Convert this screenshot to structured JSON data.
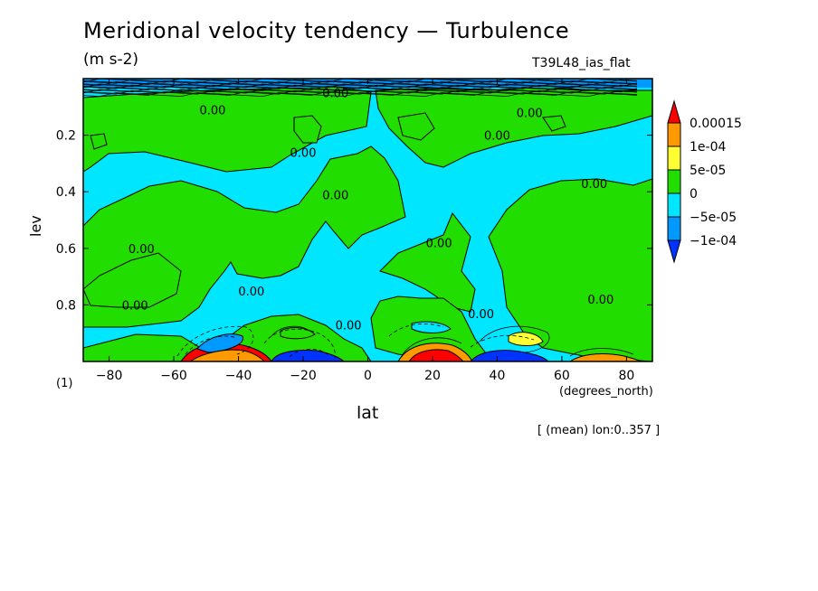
{
  "title": "Meridional velocity tendency — Turbulence",
  "units": "(m s-2)",
  "run_label": "T39L48_ias_flat",
  "panel_index": "(1)",
  "x_unit_label": "(degrees_north)",
  "mean_note": "[ (mean) lon:0..357 ]",
  "chart_data": {
    "type": "heatmap",
    "title": "Meridional velocity tendency — Turbulence",
    "xlabel": "lat",
    "ylabel": "lev",
    "xlim": [
      -88,
      88
    ],
    "ylim": [
      1.0,
      0.0
    ],
    "x_ticks": [
      -80,
      -60,
      -40,
      -20,
      0,
      20,
      40,
      60,
      80
    ],
    "x_tick_labels": [
      "−80",
      "−60",
      "−40",
      "−20",
      "0",
      "20",
      "40",
      "60",
      "80"
    ],
    "y_ticks": [
      0.2,
      0.4,
      0.6,
      0.8
    ],
    "y_tick_labels": [
      "0.2",
      "0.4",
      "0.6",
      "0.8"
    ],
    "colorbar": {
      "labels": [
        "0.00015",
        "1e-04",
        "5e-05",
        "0",
        "−5e-05",
        "−1e-04"
      ],
      "levels": [
        0.00015,
        0.0001,
        5e-05,
        0,
        -5e-05,
        -0.0001
      ],
      "colors": [
        "#ff0000",
        "#ff9900",
        "#ffff33",
        "#22dd00",
        "#00e6ff",
        "#0099ff",
        "#0033ff"
      ]
    },
    "contour_labels": [
      {
        "text": "0.00",
        "lat": -48,
        "lev": 0.11
      },
      {
        "text": "0.00",
        "lat": -70,
        "lev": 0.6
      },
      {
        "text": "0.00",
        "lat": -72,
        "lev": 0.8
      },
      {
        "text": "0.00",
        "lat": -36,
        "lev": 0.75
      },
      {
        "text": "0.00",
        "lat": -20,
        "lev": 0.26
      },
      {
        "text": "0.00",
        "lat": -10,
        "lev": 0.41
      },
      {
        "text": "0.00",
        "lat": -6,
        "lev": 0.87
      },
      {
        "text": "0.00",
        "lat": 22,
        "lev": 0.58
      },
      {
        "text": "0.00",
        "lat": 35,
        "lev": 0.83
      },
      {
        "text": "0.00",
        "lat": 40,
        "lev": 0.2
      },
      {
        "text": "0.00",
        "lat": 50,
        "lev": 0.12
      },
      {
        "text": "0.00",
        "lat": 70,
        "lev": 0.37
      },
      {
        "text": "0.00",
        "lat": 72,
        "lev": 0.78
      },
      {
        "text": "0.00",
        "lat": -10,
        "lev": 0.05
      }
    ],
    "extremes": [
      {
        "name": "positive-max-south",
        "lat": -44,
        "lev": 0.985,
        "category": "above 0.00015"
      },
      {
        "name": "negative-max-south",
        "lat": -48,
        "lev": 0.92,
        "category": "-1e-04 to -5e-05"
      },
      {
        "name": "negative-south-surface",
        "lat": -22,
        "lev": 0.985,
        "category": "below -1e-04"
      },
      {
        "name": "positive-nh-surface",
        "lat": 20,
        "lev": 0.98,
        "category": "above 0.00015"
      },
      {
        "name": "negative-nh-surface",
        "lat": 44,
        "lev": 0.985,
        "category": "below -1e-04"
      },
      {
        "name": "positive-nh-lobe",
        "lat": 48,
        "lev": 0.92,
        "category": "5e-05 to 1e-04"
      },
      {
        "name": "positive-nh-pole-surface",
        "lat": 70,
        "lev": 0.985,
        "category": "1e-04 to 0.00015"
      }
    ]
  }
}
